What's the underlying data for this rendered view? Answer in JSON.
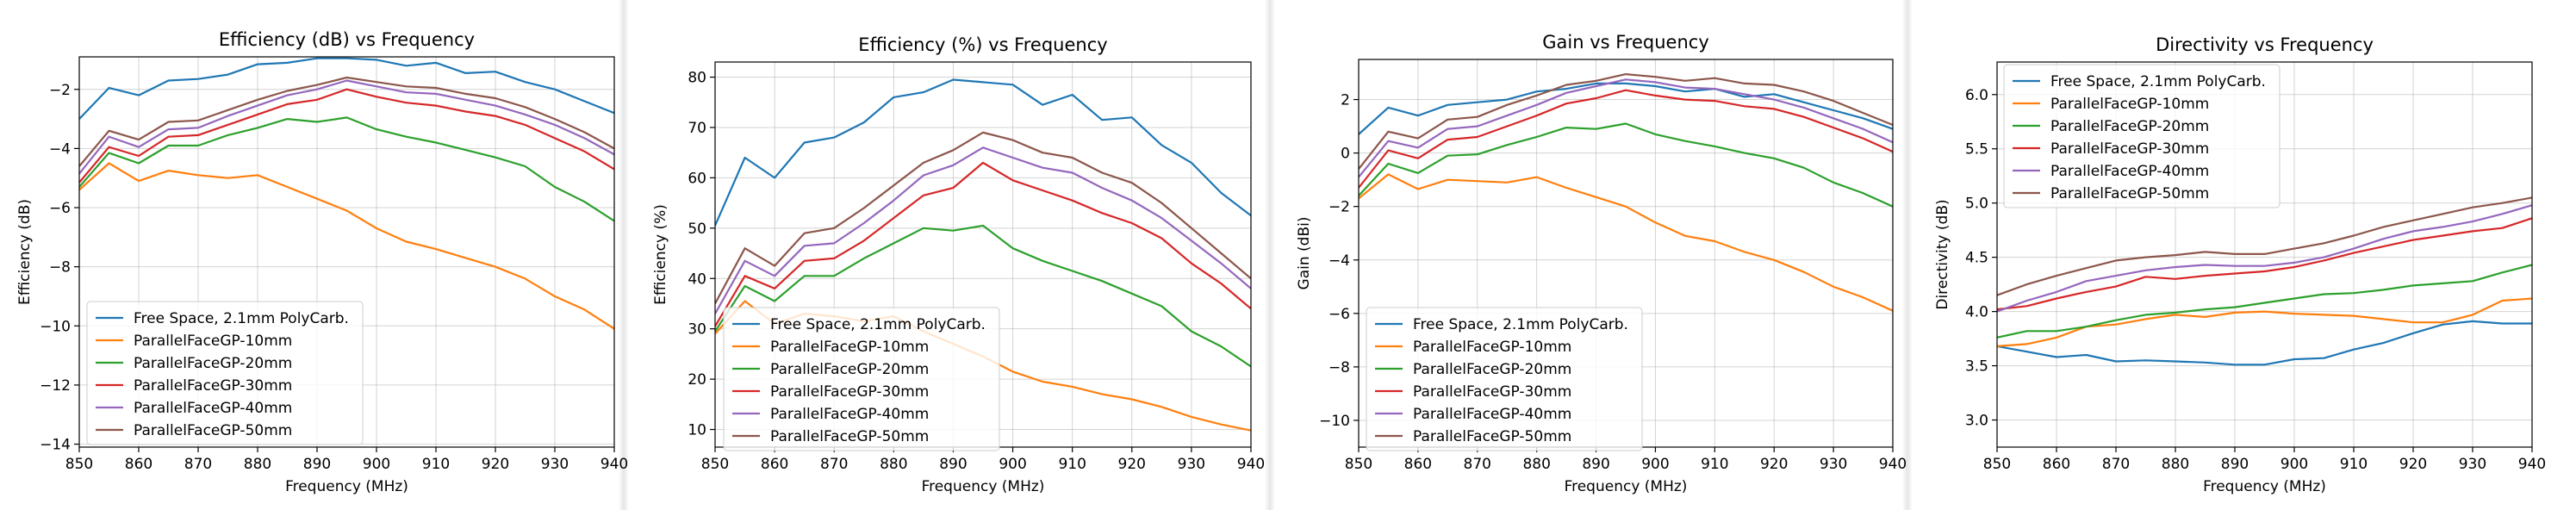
{
  "chart_data": [
    {
      "type": "line",
      "title": "Efficiency (dB) vs Frequency",
      "xlabel": "Frequency (MHz)",
      "ylabel": "Efficiency (dB)",
      "xlim": [
        850,
        940
      ],
      "ylim": [
        -14.1,
        -0.9
      ],
      "xticks": [
        850,
        860,
        870,
        880,
        890,
        900,
        910,
        920,
        930,
        940
      ],
      "yticks": [
        -14,
        -12,
        -10,
        -8,
        -6,
        -4,
        -2
      ],
      "grid": true,
      "legend_position": "lower-left",
      "x": [
        850,
        855,
        860,
        865,
        870,
        875,
        880,
        885,
        890,
        895,
        900,
        905,
        910,
        915,
        920,
        925,
        930,
        935,
        940
      ],
      "series": [
        {
          "name": "Free Space, 2.1mm PolyCarb.",
          "color": "#1f77b4",
          "values": [
            -3.0,
            -1.95,
            -2.2,
            -1.7,
            -1.65,
            -1.5,
            -1.15,
            -1.1,
            -0.95,
            -0.95,
            -1.0,
            -1.2,
            -1.1,
            -1.45,
            -1.4,
            -1.75,
            -2.0,
            -2.4,
            -2.8
          ]
        },
        {
          "name": "ParallelFaceGP-10mm",
          "color": "#ff7f0e",
          "values": [
            -5.4,
            -4.5,
            -5.1,
            -4.75,
            -4.9,
            -5.0,
            -4.9,
            -5.3,
            -5.7,
            -6.1,
            -6.7,
            -7.15,
            -7.4,
            -7.7,
            -8.0,
            -8.4,
            -9.0,
            -9.45,
            -10.1
          ]
        },
        {
          "name": "ParallelFaceGP-20mm",
          "color": "#2ca02c",
          "values": [
            -5.3,
            -4.15,
            -4.5,
            -3.9,
            -3.9,
            -3.55,
            -3.3,
            -3.0,
            -3.1,
            -2.95,
            -3.35,
            -3.6,
            -3.8,
            -4.05,
            -4.3,
            -4.6,
            -5.3,
            -5.8,
            -6.45
          ]
        },
        {
          "name": "ParallelFaceGP-30mm",
          "color": "#d62728",
          "values": [
            -5.15,
            -3.95,
            -4.25,
            -3.6,
            -3.55,
            -3.2,
            -2.85,
            -2.5,
            -2.35,
            -2.0,
            -2.25,
            -2.45,
            -2.55,
            -2.75,
            -2.9,
            -3.2,
            -3.65,
            -4.1,
            -4.7
          ]
        },
        {
          "name": "ParallelFaceGP-40mm",
          "color": "#9467bd",
          "values": [
            -4.85,
            -3.6,
            -3.95,
            -3.35,
            -3.3,
            -2.9,
            -2.55,
            -2.2,
            -2.0,
            -1.7,
            -1.9,
            -2.1,
            -2.15,
            -2.35,
            -2.55,
            -2.85,
            -3.2,
            -3.65,
            -4.2
          ]
        },
        {
          "name": "ParallelFaceGP-50mm",
          "color": "#8c564b",
          "values": [
            -4.6,
            -3.4,
            -3.7,
            -3.1,
            -3.05,
            -2.7,
            -2.35,
            -2.05,
            -1.85,
            -1.6,
            -1.75,
            -1.9,
            -1.95,
            -2.15,
            -2.3,
            -2.6,
            -3.0,
            -3.45,
            -4.0
          ]
        }
      ]
    },
    {
      "type": "line",
      "title": "Efficiency (%) vs Frequency",
      "xlabel": "Frequency (MHz)",
      "ylabel": "Efficiency (%)",
      "xlim": [
        850,
        940
      ],
      "ylim": [
        6.5,
        83
      ],
      "xticks": [
        850,
        860,
        870,
        880,
        890,
        900,
        910,
        920,
        930,
        940
      ],
      "yticks": [
        10,
        20,
        30,
        40,
        50,
        60,
        70,
        80
      ],
      "grid": true,
      "legend_position": "lower-left",
      "x": [
        850,
        855,
        860,
        865,
        870,
        875,
        880,
        885,
        890,
        895,
        900,
        905,
        910,
        915,
        920,
        925,
        930,
        935,
        940
      ],
      "series": [
        {
          "name": "Free Space, 2.1mm PolyCarb.",
          "color": "#1f77b4",
          "values": [
            50.5,
            64,
            60,
            67,
            68,
            71,
            76,
            77,
            79.5,
            79,
            78.5,
            74.5,
            76.5,
            71.5,
            72,
            66.5,
            63,
            57,
            52.5
          ]
        },
        {
          "name": "ParallelFaceGP-10mm",
          "color": "#ff7f0e",
          "values": [
            29,
            35.5,
            31,
            33,
            32.5,
            31.5,
            32.5,
            29.5,
            27,
            24.5,
            21.5,
            19.5,
            18.5,
            17,
            16,
            14.5,
            12.5,
            11,
            9.8
          ]
        },
        {
          "name": "ParallelFaceGP-20mm",
          "color": "#2ca02c",
          "values": [
            29.5,
            38.5,
            35.5,
            40.5,
            40.5,
            44,
            47,
            50,
            49.5,
            50.5,
            46,
            43.5,
            41.5,
            39.5,
            37,
            34.5,
            29.5,
            26.5,
            22.5
          ]
        },
        {
          "name": "ParallelFaceGP-30mm",
          "color": "#d62728",
          "values": [
            30.5,
            40.5,
            38,
            43.5,
            44,
            47.5,
            52,
            56.5,
            58,
            63,
            59.5,
            57.5,
            55.5,
            53,
            51,
            48,
            43,
            39,
            34
          ]
        },
        {
          "name": "ParallelFaceGP-40mm",
          "color": "#9467bd",
          "values": [
            33,
            43.5,
            40.5,
            46.5,
            47,
            51,
            55.5,
            60.5,
            62.5,
            66,
            64,
            62,
            61,
            58,
            55.5,
            52,
            47.5,
            43,
            38
          ]
        },
        {
          "name": "ParallelFaceGP-50mm",
          "color": "#8c564b",
          "values": [
            35,
            46,
            42.5,
            49,
            50,
            54,
            58.5,
            63,
            65.5,
            69,
            67.5,
            65,
            64,
            61,
            59,
            55,
            50,
            45,
            40
          ]
        }
      ]
    },
    {
      "type": "line",
      "title": "Gain vs Frequency",
      "xlabel": "Frequency (MHz)",
      "ylabel": "Gain (dBi)",
      "xlim": [
        850,
        940
      ],
      "ylim": [
        -11,
        3.5
      ],
      "xticks": [
        850,
        860,
        870,
        880,
        890,
        900,
        910,
        920,
        930,
        940
      ],
      "yticks": [
        -10,
        -8,
        -6,
        -4,
        -2,
        0,
        2
      ],
      "grid": true,
      "legend_position": "lower-left",
      "x": [
        850,
        855,
        860,
        865,
        870,
        875,
        880,
        885,
        890,
        895,
        900,
        905,
        910,
        915,
        920,
        925,
        930,
        935,
        940
      ],
      "series": [
        {
          "name": "Free Space, 2.1mm PolyCarb.",
          "color": "#1f77b4",
          "values": [
            0.7,
            1.7,
            1.4,
            1.8,
            1.9,
            2.0,
            2.3,
            2.4,
            2.6,
            2.6,
            2.5,
            2.3,
            2.4,
            2.1,
            2.2,
            1.9,
            1.6,
            1.3,
            0.9
          ]
        },
        {
          "name": "ParallelFaceGP-10mm",
          "color": "#ff7f0e",
          "values": [
            -1.7,
            -0.8,
            -1.35,
            -1.0,
            -1.05,
            -1.1,
            -0.9,
            -1.3,
            -1.65,
            -2.0,
            -2.6,
            -3.1,
            -3.3,
            -3.7,
            -4.0,
            -4.45,
            -5.0,
            -5.4,
            -5.9
          ]
        },
        {
          "name": "ParallelFaceGP-20mm",
          "color": "#2ca02c",
          "values": [
            -1.6,
            -0.4,
            -0.75,
            -0.1,
            -0.05,
            0.3,
            0.6,
            0.95,
            0.9,
            1.1,
            0.7,
            0.45,
            0.25,
            0.0,
            -0.2,
            -0.55,
            -1.1,
            -1.5,
            -2.0
          ]
        },
        {
          "name": "ParallelFaceGP-30mm",
          "color": "#d62728",
          "values": [
            -1.3,
            0.1,
            -0.2,
            0.5,
            0.6,
            1.0,
            1.4,
            1.85,
            2.05,
            2.35,
            2.15,
            2.0,
            1.95,
            1.75,
            1.65,
            1.35,
            0.95,
            0.55,
            0.05
          ]
        },
        {
          "name": "ParallelFaceGP-40mm",
          "color": "#9467bd",
          "values": [
            -0.9,
            0.45,
            0.2,
            0.9,
            1.0,
            1.4,
            1.8,
            2.25,
            2.5,
            2.75,
            2.65,
            2.45,
            2.4,
            2.2,
            2.0,
            1.7,
            1.3,
            0.9,
            0.4
          ]
        },
        {
          "name": "ParallelFaceGP-50mm",
          "color": "#8c564b",
          "values": [
            -0.6,
            0.8,
            0.55,
            1.25,
            1.35,
            1.8,
            2.15,
            2.55,
            2.7,
            2.95,
            2.85,
            2.7,
            2.8,
            2.6,
            2.55,
            2.3,
            1.95,
            1.5,
            1.05
          ]
        }
      ]
    },
    {
      "type": "line",
      "title": "Directivity vs Frequency",
      "xlabel": "Frequency (MHz)",
      "ylabel": "Directivity (dB)",
      "xlim": [
        850,
        940
      ],
      "ylim": [
        2.75,
        6.3
      ],
      "xticks": [
        850,
        860,
        870,
        880,
        890,
        900,
        910,
        920,
        930,
        940
      ],
      "yticks": [
        3.0,
        3.5,
        4.0,
        4.5,
        5.0,
        5.5,
        6.0
      ],
      "grid": true,
      "legend_position": "upper-left",
      "x": [
        850,
        855,
        860,
        865,
        870,
        875,
        880,
        885,
        890,
        895,
        900,
        905,
        910,
        915,
        920,
        925,
        930,
        935,
        940
      ],
      "series": [
        {
          "name": "Free Space, 2.1mm PolyCarb.",
          "color": "#1f77b4",
          "values": [
            3.68,
            3.63,
            3.58,
            3.6,
            3.54,
            3.55,
            3.54,
            3.53,
            3.51,
            3.51,
            3.56,
            3.57,
            3.65,
            3.71,
            3.8,
            3.88,
            3.91,
            3.89,
            3.89
          ]
        },
        {
          "name": "ParallelFaceGP-10mm",
          "color": "#ff7f0e",
          "values": [
            3.68,
            3.7,
            3.76,
            3.86,
            3.88,
            3.93,
            3.97,
            3.95,
            3.99,
            4.0,
            3.98,
            3.97,
            3.96,
            3.93,
            3.9,
            3.9,
            3.97,
            4.1,
            4.12
          ]
        },
        {
          "name": "ParallelFaceGP-20mm",
          "color": "#2ca02c",
          "values": [
            3.76,
            3.82,
            3.82,
            3.86,
            3.92,
            3.97,
            3.99,
            4.02,
            4.04,
            4.08,
            4.12,
            4.16,
            4.17,
            4.2,
            4.24,
            4.26,
            4.28,
            4.36,
            4.43
          ]
        },
        {
          "name": "ParallelFaceGP-30mm",
          "color": "#d62728",
          "values": [
            4.02,
            4.05,
            4.12,
            4.18,
            4.23,
            4.32,
            4.3,
            4.33,
            4.35,
            4.37,
            4.41,
            4.47,
            4.54,
            4.6,
            4.66,
            4.7,
            4.74,
            4.77,
            4.86
          ]
        },
        {
          "name": "ParallelFaceGP-40mm",
          "color": "#9467bd",
          "values": [
            4.0,
            4.1,
            4.18,
            4.28,
            4.33,
            4.38,
            4.41,
            4.43,
            4.42,
            4.42,
            4.45,
            4.5,
            4.58,
            4.67,
            4.74,
            4.78,
            4.83,
            4.9,
            4.98
          ]
        },
        {
          "name": "ParallelFaceGP-50mm",
          "color": "#8c564b",
          "values": [
            4.15,
            4.25,
            4.33,
            4.4,
            4.47,
            4.5,
            4.52,
            4.55,
            4.53,
            4.53,
            4.58,
            4.63,
            4.7,
            4.78,
            4.84,
            4.9,
            4.96,
            5.0,
            5.05
          ]
        }
      ]
    }
  ]
}
